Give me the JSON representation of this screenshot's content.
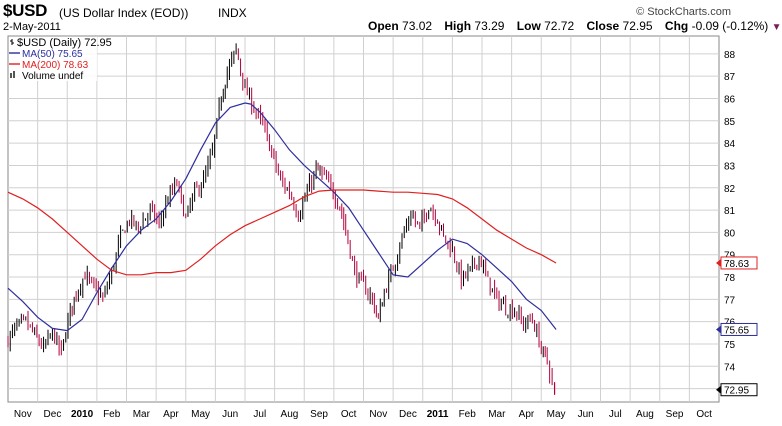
{
  "header": {
    "symbol": "$USD",
    "description": "(US Dollar Index (EOD))",
    "exchange": "INDX",
    "date": "2-May-2011",
    "brand": "© StockCharts.com",
    "open_label": "Open",
    "open": "73.02",
    "high_label": "High",
    "high": "73.29",
    "low_label": "Low",
    "low": "72.72",
    "close_label": "Close",
    "close": "72.95",
    "chg_label": "Chg",
    "chg": "-0.09 (-0.12%)"
  },
  "colors": {
    "price_up": "#000000",
    "price_down": "#b0003a",
    "ma50": "#2e2e9e",
    "ma200": "#e02020",
    "grid": "#d0d0d0"
  },
  "chart_data": {
    "type": "line",
    "title": "$USD (Daily) 72.95",
    "legend": [
      {
        "label": "$USD (Daily) 72.95",
        "color": "#000000",
        "icon": "bar-icon"
      },
      {
        "label": "MA(50) 75.65",
        "color": "#2e2e9e",
        "icon": "line-icon"
      },
      {
        "label": "MA(200) 78.63",
        "color": "#e02020",
        "icon": "line-icon"
      },
      {
        "label": "Volume undef",
        "color": "#555555",
        "icon": "volume-icon"
      }
    ],
    "ylim": [
      72.4,
      88.8
    ],
    "y_ticks": [
      73,
      74,
      75,
      76,
      77,
      78,
      79,
      80,
      81,
      82,
      83,
      84,
      85,
      86,
      87,
      88
    ],
    "x_range": [
      0,
      24
    ],
    "x_ticks": [
      {
        "label": "Nov",
        "x": 0.5,
        "bold": false
      },
      {
        "label": "Dec",
        "x": 1.5,
        "bold": false
      },
      {
        "label": "2010",
        "x": 2.5,
        "bold": true
      },
      {
        "label": "Feb",
        "x": 3.5,
        "bold": false
      },
      {
        "label": "Mar",
        "x": 4.5,
        "bold": false
      },
      {
        "label": "Apr",
        "x": 5.5,
        "bold": false
      },
      {
        "label": "May",
        "x": 6.5,
        "bold": false
      },
      {
        "label": "Jun",
        "x": 7.5,
        "bold": false
      },
      {
        "label": "Jul",
        "x": 8.5,
        "bold": false
      },
      {
        "label": "Aug",
        "x": 9.5,
        "bold": false
      },
      {
        "label": "Sep",
        "x": 10.5,
        "bold": false
      },
      {
        "label": "Oct",
        "x": 11.5,
        "bold": false
      },
      {
        "label": "Nov",
        "x": 12.5,
        "bold": false
      },
      {
        "label": "Dec",
        "x": 13.5,
        "bold": false
      },
      {
        "label": "2011",
        "x": 14.5,
        "bold": true
      },
      {
        "label": "Feb",
        "x": 15.5,
        "bold": false
      },
      {
        "label": "Mar",
        "x": 16.5,
        "bold": false
      },
      {
        "label": "Apr",
        "x": 17.5,
        "bold": false
      },
      {
        "label": "May",
        "x": 18.5,
        "bold": false
      },
      {
        "label": "Jun",
        "x": 19.5,
        "bold": false
      },
      {
        "label": "Jul",
        "x": 20.5,
        "bold": false
      },
      {
        "label": "Aug",
        "x": 21.5,
        "bold": false
      },
      {
        "label": "Sep",
        "x": 22.5,
        "bold": false
      },
      {
        "label": "Oct",
        "x": 23.5,
        "bold": false
      }
    ],
    "series": [
      {
        "name": "$USD",
        "kind": "price",
        "x": [
          0,
          0.3,
          0.6,
          0.9,
          1.2,
          1.5,
          1.8,
          2.1,
          2.3,
          2.6,
          2.9,
          3.2,
          3.5,
          3.8,
          4.1,
          4.4,
          4.8,
          5.1,
          5.4,
          5.7,
          6.0,
          6.3,
          6.6,
          6.9,
          7.2,
          7.4,
          7.7,
          8.0,
          8.3,
          8.6,
          8.9,
          9.2,
          9.5,
          9.8,
          10.1,
          10.4,
          10.6,
          10.9,
          11.2,
          11.4,
          11.7,
          12.0,
          12.3,
          12.5,
          12.7,
          13.0,
          13.3,
          13.6,
          13.9,
          14.2,
          14.5,
          14.7,
          15.0,
          15.3,
          15.6,
          15.9,
          16.2,
          16.5,
          16.8,
          17.1,
          17.4,
          17.7,
          18.0,
          18.2,
          18.45
        ],
        "values": [
          75.2,
          75.8,
          76.0,
          75.4,
          74.8,
          75.5,
          74.6,
          76.5,
          77.3,
          78.1,
          77.5,
          77.0,
          78.2,
          79.8,
          80.6,
          80.2,
          81.0,
          80.4,
          81.5,
          82.2,
          80.6,
          81.8,
          82.3,
          83.6,
          86.1,
          87.2,
          88.2,
          86.4,
          85.6,
          84.8,
          83.6,
          82.3,
          81.8,
          80.8,
          81.8,
          82.8,
          82.6,
          82.0,
          81.2,
          80.1,
          78.2,
          77.6,
          77.0,
          76.1,
          77.3,
          78.4,
          79.8,
          80.8,
          80.2,
          81.2,
          80.6,
          79.8,
          79.2,
          77.9,
          78.3,
          78.9,
          77.8,
          77.0,
          76.6,
          76.5,
          75.9,
          76.1,
          74.8,
          74.2,
          72.95
        ]
      },
      {
        "name": "MA(50)",
        "kind": "ma",
        "color": "#2e2e9e",
        "x": [
          0,
          0.5,
          1.0,
          1.5,
          2.0,
          2.5,
          3.0,
          3.5,
          4.0,
          4.5,
          5.0,
          5.5,
          6.0,
          6.5,
          7.0,
          7.5,
          8.0,
          8.2,
          8.5,
          9.0,
          9.5,
          10.0,
          10.5,
          11.0,
          11.5,
          12.0,
          12.5,
          13.0,
          13.5,
          14.0,
          14.5,
          15.0,
          15.5,
          16.0,
          16.5,
          17.0,
          17.5,
          18.0,
          18.5
        ],
        "values": [
          77.5,
          76.9,
          76.2,
          75.7,
          75.6,
          76.1,
          77.3,
          78.4,
          79.4,
          80.1,
          80.6,
          81.4,
          82.4,
          83.7,
          84.9,
          85.6,
          85.8,
          85.75,
          85.4,
          84.6,
          83.7,
          83.0,
          82.4,
          81.8,
          81.1,
          80.1,
          79.1,
          78.1,
          78.0,
          78.6,
          79.2,
          79.7,
          79.5,
          79.0,
          78.4,
          77.8,
          77.0,
          76.5,
          75.65
        ]
      },
      {
        "name": "MA(200)",
        "kind": "ma",
        "color": "#e02020",
        "x": [
          0,
          0.5,
          1.0,
          1.5,
          2.0,
          2.5,
          3.0,
          3.5,
          4.0,
          4.5,
          5.0,
          5.5,
          6.0,
          6.5,
          7.0,
          7.5,
          8.0,
          8.5,
          9.0,
          9.5,
          10.0,
          10.5,
          11.0,
          11.5,
          12.0,
          12.5,
          13.0,
          13.5,
          14.0,
          14.5,
          15.0,
          15.5,
          16.0,
          16.5,
          17.0,
          17.5,
          18.0,
          18.5
        ],
        "values": [
          81.8,
          81.5,
          81.1,
          80.6,
          80.0,
          79.4,
          78.8,
          78.3,
          78.1,
          78.1,
          78.2,
          78.2,
          78.3,
          78.8,
          79.4,
          79.9,
          80.3,
          80.6,
          80.9,
          81.2,
          81.6,
          81.85,
          81.9,
          81.9,
          81.9,
          81.85,
          81.8,
          81.8,
          81.75,
          81.7,
          81.5,
          81.1,
          80.6,
          80.1,
          79.7,
          79.3,
          79.0,
          78.63
        ]
      }
    ],
    "value_tags": [
      {
        "label": "78.63",
        "value": 78.63,
        "color": "#e02020"
      },
      {
        "label": "75.65",
        "value": 75.65,
        "color": "#2e2e9e"
      },
      {
        "label": "72.95",
        "value": 72.95,
        "color": "#000000"
      }
    ]
  }
}
